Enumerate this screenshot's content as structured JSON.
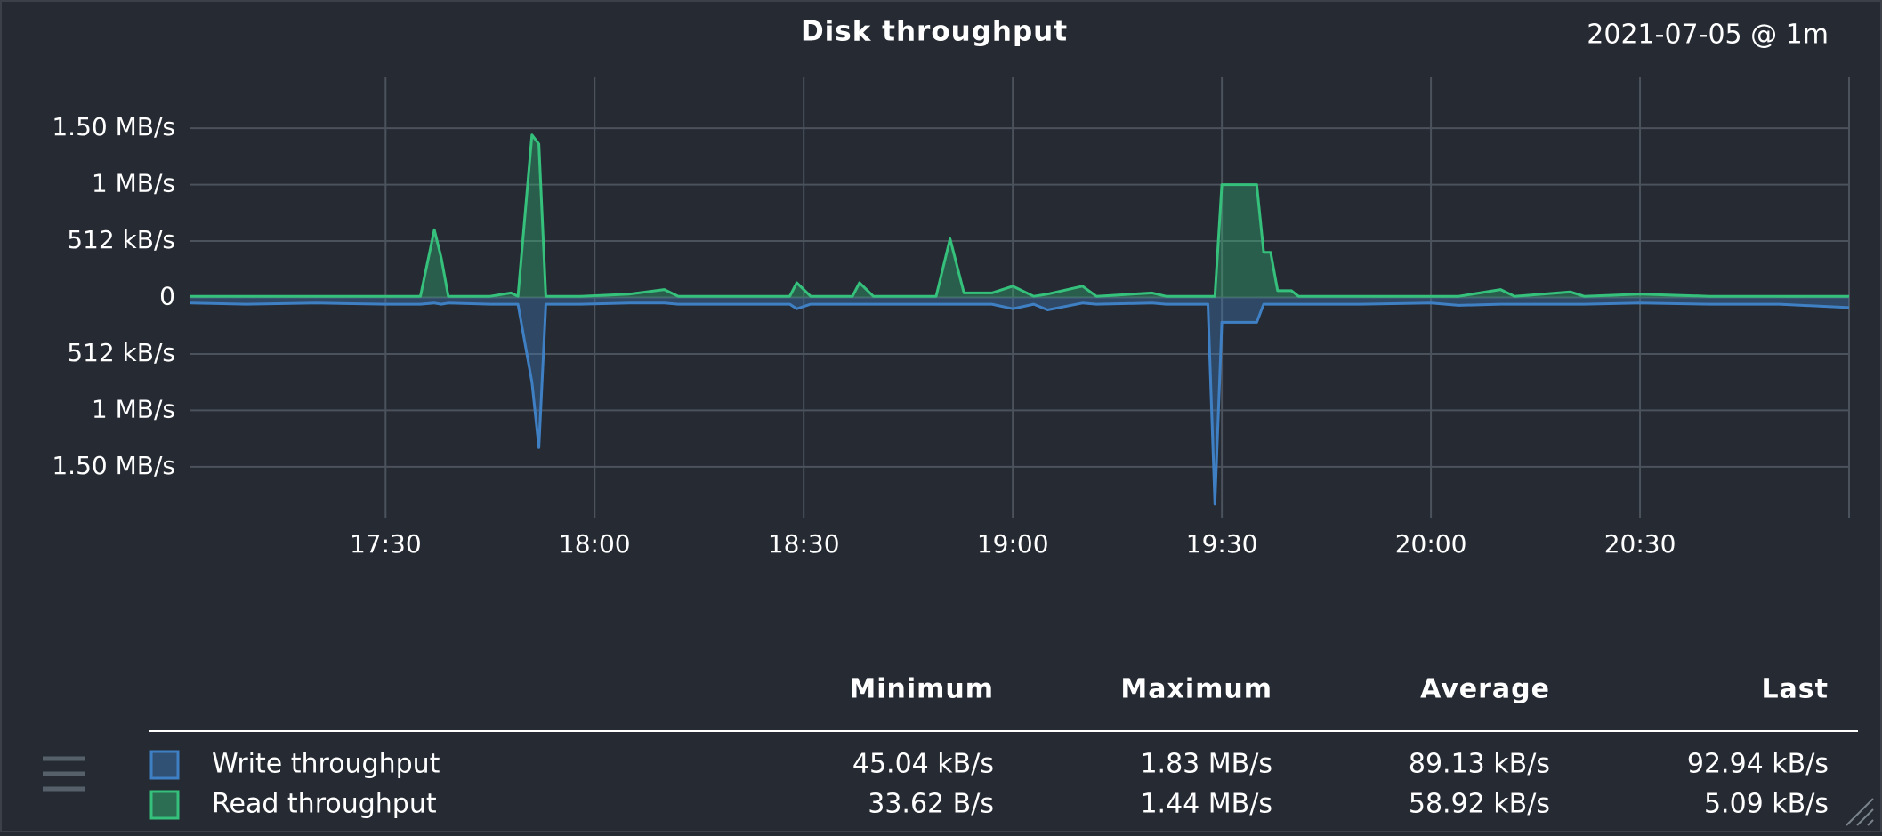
{
  "title": "Disk throughput",
  "timestamp": "2021-07-05 @ 1m",
  "chart_data": {
    "type": "area",
    "grid": true,
    "xlim": [
      "17:02",
      "21:00"
    ],
    "xticks": [
      "17:30",
      "18:00",
      "18:30",
      "19:00",
      "19:30",
      "20:00",
      "20:30"
    ],
    "ylim": [
      -1.95,
      1.95
    ],
    "yticks": [
      {
        "value": 1.5,
        "label": "1.50 MB/s"
      },
      {
        "value": 1,
        "label": "1 MB/s"
      },
      {
        "value": 0.5,
        "label": "512 kB/s"
      },
      0,
      {
        "value": -0.5,
        "label": "512 kB/s"
      },
      {
        "value": -1,
        "label": "1 MB/s"
      },
      {
        "value": -1.5,
        "label": "1.50 MB/s"
      }
    ],
    "x": [
      "17:02",
      "17:10",
      "17:20",
      "17:30",
      "17:35",
      "17:37",
      "17:38",
      "17:39",
      "17:45",
      "17:48",
      "17:49",
      "17:51",
      "17:52",
      "17:53",
      "17:58",
      "18:05",
      "18:10",
      "18:12",
      "18:20",
      "18:28",
      "18:29",
      "18:31",
      "18:37",
      "18:38",
      "18:40",
      "18:47",
      "18:49",
      "18:51",
      "18:53",
      "18:57",
      "19:00",
      "19:03",
      "19:05",
      "19:10",
      "19:12",
      "19:20",
      "19:22",
      "19:28",
      "19:29",
      "19:30",
      "19:35",
      "19:36",
      "19:37",
      "19:38",
      "19:40",
      "19:41",
      "19:50",
      "20:00",
      "20:04",
      "20:10",
      "20:12",
      "20:20",
      "20:22",
      "20:30",
      "20:40",
      "20:50",
      "21:00"
    ],
    "series": [
      {
        "name": "Write throughput",
        "color": "#3f80c4",
        "values": [
          -0.05,
          -0.06,
          -0.05,
          -0.06,
          -0.06,
          -0.05,
          -0.06,
          -0.05,
          -0.06,
          -0.06,
          -0.06,
          -0.75,
          -1.33,
          -0.06,
          -0.06,
          -0.05,
          -0.05,
          -0.06,
          -0.06,
          -0.06,
          -0.1,
          -0.06,
          -0.06,
          -0.06,
          -0.06,
          -0.06,
          -0.06,
          -0.06,
          -0.06,
          -0.06,
          -0.1,
          -0.06,
          -0.11,
          -0.05,
          -0.06,
          -0.05,
          -0.06,
          -0.06,
          -1.83,
          -0.22,
          -0.22,
          -0.06,
          -0.06,
          -0.06,
          -0.06,
          -0.06,
          -0.06,
          -0.05,
          -0.07,
          -0.06,
          -0.06,
          -0.06,
          -0.06,
          -0.05,
          -0.06,
          -0.06,
          -0.09
        ]
      },
      {
        "name": "Read throughput",
        "color": "#35c17b",
        "values": [
          0.01,
          0.01,
          0.01,
          0.01,
          0.01,
          0.6,
          0.35,
          0.01,
          0.01,
          0.04,
          0.01,
          1.44,
          1.36,
          0.01,
          0.01,
          0.03,
          0.07,
          0.01,
          0.01,
          0.01,
          0.13,
          0.01,
          0.01,
          0.13,
          0.01,
          0.01,
          0.01,
          0.52,
          0.04,
          0.04,
          0.1,
          0.01,
          0.03,
          0.1,
          0.01,
          0.04,
          0.01,
          0.01,
          0.01,
          1.0,
          1.0,
          0.4,
          0.4,
          0.06,
          0.06,
          0.01,
          0.01,
          0.01,
          0.01,
          0.07,
          0.01,
          0.05,
          0.01,
          0.03,
          0.01,
          0.01,
          0.01
        ]
      }
    ]
  },
  "legend_table": {
    "columns": [
      "Minimum",
      "Maximum",
      "Average",
      "Last"
    ],
    "rows": [
      [
        "45.04 kB/s",
        "1.83 MB/s",
        "89.13 kB/s",
        "92.94 kB/s"
      ],
      [
        "33.62 B/s",
        "1.44 MB/s",
        "58.92 kB/s",
        "5.09 kB/s"
      ]
    ]
  }
}
